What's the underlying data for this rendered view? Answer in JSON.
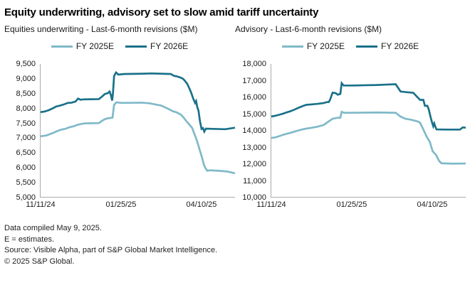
{
  "header": {
    "title": "Equity underwriting, advisory set to slow amid tariff uncertainty"
  },
  "colors": {
    "fy2025": "#7fb9c8",
    "fy2026": "#1a7189",
    "axis": "#ababab"
  },
  "chart_data": [
    {
      "type": "line",
      "subtitle": "Equities underwriting - Last-6-month revisions ($M)",
      "xlabel": "",
      "ylabel": "",
      "ylim": [
        5000,
        9500
      ],
      "grid": false,
      "legend_position": "top",
      "yticks": [
        "9,500",
        "9,000",
        "8,500",
        "8,000",
        "7,500",
        "7,000",
        "6,500",
        "6,000",
        "5,500",
        "5,000"
      ],
      "xticks": [
        {
          "label": "11/11/24",
          "pos": 0.0
        },
        {
          "label": "01/25/25",
          "pos": 0.42
        },
        {
          "label": "04/10/25",
          "pos": 0.84
        }
      ],
      "legend": [
        {
          "label": "FY 2025E",
          "color": "#7fb9c8"
        },
        {
          "label": "FY 2026E",
          "color": "#1a7189"
        }
      ],
      "series": [
        {
          "name": "FY 2025E",
          "color": "#7fb9c8",
          "points": [
            [
              0.0,
              7050
            ],
            [
              0.03,
              7080
            ],
            [
              0.05,
              7130
            ],
            [
              0.07,
              7180
            ],
            [
              0.09,
              7240
            ],
            [
              0.11,
              7280
            ],
            [
              0.13,
              7310
            ],
            [
              0.15,
              7360
            ],
            [
              0.17,
              7390
            ],
            [
              0.19,
              7440
            ],
            [
              0.21,
              7470
            ],
            [
              0.23,
              7490
            ],
            [
              0.3,
              7500
            ],
            [
              0.315,
              7570
            ],
            [
              0.33,
              7630
            ],
            [
              0.345,
              7660
            ],
            [
              0.37,
              7680
            ],
            [
              0.378,
              8120
            ],
            [
              0.39,
              8200
            ],
            [
              0.42,
              8180
            ],
            [
              0.52,
              8190
            ],
            [
              0.56,
              8170
            ],
            [
              0.59,
              8130
            ],
            [
              0.62,
              8090
            ],
            [
              0.64,
              8030
            ],
            [
              0.66,
              7970
            ],
            [
              0.68,
              7900
            ],
            [
              0.7,
              7860
            ],
            [
              0.72,
              7790
            ],
            [
              0.735,
              7690
            ],
            [
              0.75,
              7560
            ],
            [
              0.765,
              7450
            ],
            [
              0.78,
              7330
            ],
            [
              0.79,
              7150
            ],
            [
              0.8,
              6980
            ],
            [
              0.81,
              6780
            ],
            [
              0.82,
              6550
            ],
            [
              0.83,
              6340
            ],
            [
              0.84,
              6090
            ],
            [
              0.85,
              5950
            ],
            [
              0.858,
              5880
            ],
            [
              0.87,
              5900
            ],
            [
              0.92,
              5880
            ],
            [
              0.96,
              5860
            ],
            [
              1.0,
              5800
            ]
          ]
        },
        {
          "name": "FY 2026E",
          "color": "#1a7189",
          "points": [
            [
              0.0,
              7870
            ],
            [
              0.02,
              7890
            ],
            [
              0.04,
              7930
            ],
            [
              0.06,
              7990
            ],
            [
              0.08,
              8060
            ],
            [
              0.1,
              8090
            ],
            [
              0.12,
              8130
            ],
            [
              0.14,
              8180
            ],
            [
              0.16,
              8190
            ],
            [
              0.18,
              8230
            ],
            [
              0.193,
              8330
            ],
            [
              0.205,
              8290
            ],
            [
              0.22,
              8300
            ],
            [
              0.3,
              8310
            ],
            [
              0.315,
              8390
            ],
            [
              0.33,
              8480
            ],
            [
              0.345,
              8510
            ],
            [
              0.355,
              8570
            ],
            [
              0.362,
              8440
            ],
            [
              0.368,
              8260
            ],
            [
              0.372,
              8500
            ],
            [
              0.378,
              9090
            ],
            [
              0.388,
              9210
            ],
            [
              0.4,
              9140
            ],
            [
              0.43,
              9160
            ],
            [
              0.52,
              9170
            ],
            [
              0.57,
              9180
            ],
            [
              0.62,
              9170
            ],
            [
              0.67,
              9160
            ],
            [
              0.685,
              9100
            ],
            [
              0.7,
              9080
            ],
            [
              0.715,
              9050
            ],
            [
              0.73,
              9010
            ],
            [
              0.74,
              8950
            ],
            [
              0.755,
              8820
            ],
            [
              0.765,
              8680
            ],
            [
              0.775,
              8520
            ],
            [
              0.785,
              8330
            ],
            [
              0.795,
              8180
            ],
            [
              0.8,
              8240
            ],
            [
              0.805,
              8060
            ],
            [
              0.812,
              7920
            ],
            [
              0.82,
              7550
            ],
            [
              0.828,
              7300
            ],
            [
              0.835,
              7330
            ],
            [
              0.842,
              7210
            ],
            [
              0.85,
              7310
            ],
            [
              0.9,
              7300
            ],
            [
              0.95,
              7290
            ],
            [
              1.0,
              7340
            ]
          ]
        }
      ]
    },
    {
      "type": "line",
      "subtitle": "Advisory - Last-6-month revisions ($M)",
      "xlabel": "",
      "ylabel": "",
      "ylim": [
        10000,
        18000
      ],
      "grid": false,
      "legend_position": "top",
      "yticks": [
        "18,000",
        "17,000",
        "16,000",
        "15,000",
        "14,000",
        "13,000",
        "12,000",
        "11,000",
        "10,000"
      ],
      "xticks": [
        {
          "label": "11/11/24",
          "pos": 0.0
        },
        {
          "label": "01/25/25",
          "pos": 0.42
        },
        {
          "label": "04/10/25",
          "pos": 0.84
        }
      ],
      "legend": [
        {
          "label": "FY 2025E",
          "color": "#7fb9c8"
        },
        {
          "label": "FY 2026E",
          "color": "#1a7189"
        }
      ],
      "series": [
        {
          "name": "FY 2025E",
          "color": "#7fb9c8",
          "points": [
            [
              0.0,
              13550
            ],
            [
              0.02,
              13580
            ],
            [
              0.04,
              13650
            ],
            [
              0.06,
              13730
            ],
            [
              0.08,
              13800
            ],
            [
              0.1,
              13860
            ],
            [
              0.12,
              13930
            ],
            [
              0.14,
              14000
            ],
            [
              0.16,
              14060
            ],
            [
              0.18,
              14110
            ],
            [
              0.21,
              14160
            ],
            [
              0.24,
              14230
            ],
            [
              0.27,
              14330
            ],
            [
              0.295,
              14540
            ],
            [
              0.315,
              14700
            ],
            [
              0.34,
              14760
            ],
            [
              0.355,
              14760
            ],
            [
              0.362,
              15120
            ],
            [
              0.375,
              15060
            ],
            [
              0.45,
              15070
            ],
            [
              0.55,
              15080
            ],
            [
              0.64,
              15060
            ],
            [
              0.665,
              14830
            ],
            [
              0.69,
              14700
            ],
            [
              0.72,
              14640
            ],
            [
              0.75,
              14550
            ],
            [
              0.765,
              14470
            ],
            [
              0.78,
              14110
            ],
            [
              0.8,
              13600
            ],
            [
              0.815,
              13320
            ],
            [
              0.83,
              12740
            ],
            [
              0.848,
              12520
            ],
            [
              0.863,
              12160
            ],
            [
              0.875,
              12020
            ],
            [
              0.93,
              12000
            ],
            [
              1.0,
              12010
            ]
          ]
        },
        {
          "name": "FY 2026E",
          "color": "#1a7189",
          "points": [
            [
              0.0,
              14840
            ],
            [
              0.02,
              14880
            ],
            [
              0.04,
              14940
            ],
            [
              0.06,
              15010
            ],
            [
              0.08,
              15090
            ],
            [
              0.1,
              15160
            ],
            [
              0.12,
              15260
            ],
            [
              0.14,
              15360
            ],
            [
              0.16,
              15460
            ],
            [
              0.18,
              15540
            ],
            [
              0.21,
              15570
            ],
            [
              0.24,
              15600
            ],
            [
              0.27,
              15650
            ],
            [
              0.285,
              15700
            ],
            [
              0.295,
              15700
            ],
            [
              0.302,
              15840
            ],
            [
              0.315,
              16270
            ],
            [
              0.33,
              16250
            ],
            [
              0.342,
              16150
            ],
            [
              0.355,
              16200
            ],
            [
              0.362,
              16845
            ],
            [
              0.372,
              16700
            ],
            [
              0.42,
              16700
            ],
            [
              0.48,
              16720
            ],
            [
              0.54,
              16730
            ],
            [
              0.6,
              16760
            ],
            [
              0.64,
              16780
            ],
            [
              0.665,
              16340
            ],
            [
              0.7,
              16300
            ],
            [
              0.73,
              16270
            ],
            [
              0.765,
              15840
            ],
            [
              0.782,
              15840
            ],
            [
              0.79,
              15480
            ],
            [
              0.803,
              15480
            ],
            [
              0.81,
              15260
            ],
            [
              0.82,
              14760
            ],
            [
              0.827,
              14470
            ],
            [
              0.833,
              14250
            ],
            [
              0.838,
              14420
            ],
            [
              0.843,
              14250
            ],
            [
              0.85,
              14060
            ],
            [
              0.9,
              14050
            ],
            [
              0.97,
              14050
            ],
            [
              0.985,
              14180
            ],
            [
              1.0,
              14160
            ]
          ]
        }
      ]
    }
  ],
  "footer": {
    "lines": [
      "Data compiled May 9, 2025.",
      "E = estimates.",
      "Source: Visible Alpha, part of S&P Global Market Intelligence.",
      "© 2025 S&P Global."
    ]
  }
}
